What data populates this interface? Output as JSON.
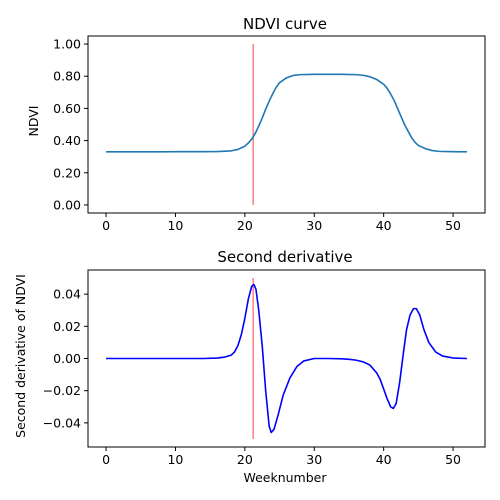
{
  "chart_data": [
    {
      "type": "line",
      "title": "NDVI curve",
      "xlabel": "",
      "ylabel": "NDVI",
      "xlim": [
        -2.6,
        54.6
      ],
      "ylim": [
        -0.05,
        1.05
      ],
      "xticks": [
        0,
        10,
        20,
        30,
        40,
        50
      ],
      "xtick_labels": [
        "0",
        "10",
        "20",
        "30",
        "40",
        "50"
      ],
      "yticks": [
        0.0,
        0.2,
        0.4,
        0.6,
        0.8,
        1.0
      ],
      "ytick_labels": [
        "0.00",
        "0.20",
        "0.40",
        "0.60",
        "0.80",
        "1.00"
      ],
      "grid": false,
      "series": [
        {
          "color": "#1f77b4",
          "x": [
            0,
            2,
            4,
            6,
            8,
            10,
            12,
            14,
            16,
            18,
            19,
            20,
            20.5,
            21,
            21.5,
            22,
            22.5,
            23,
            23.5,
            24,
            24.5,
            25,
            26,
            27,
            28,
            30,
            32,
            34,
            36,
            37,
            38,
            39,
            40,
            40.5,
            41,
            41.5,
            42,
            42.5,
            43,
            43.5,
            44,
            44.5,
            45,
            46,
            47,
            48,
            50,
            52
          ],
          "y": [
            0.33,
            0.33,
            0.33,
            0.33,
            0.33,
            0.331,
            0.331,
            0.331,
            0.332,
            0.336,
            0.345,
            0.365,
            0.385,
            0.41,
            0.445,
            0.49,
            0.54,
            0.595,
            0.645,
            0.69,
            0.73,
            0.76,
            0.79,
            0.805,
            0.81,
            0.812,
            0.812,
            0.812,
            0.81,
            0.806,
            0.797,
            0.78,
            0.75,
            0.725,
            0.69,
            0.65,
            0.6,
            0.55,
            0.5,
            0.46,
            0.42,
            0.39,
            0.37,
            0.35,
            0.338,
            0.333,
            0.331,
            0.33
          ]
        }
      ],
      "vline": {
        "x": 21.2,
        "ymin": 0.0,
        "ymax": 1.0,
        "color": "#ff7f7f"
      }
    },
    {
      "type": "line",
      "title": "Second derivative",
      "xlabel": "Weeknumber",
      "ylabel": "Second derivative of NDVI",
      "xlim": [
        -2.6,
        54.6
      ],
      "ylim": [
        -0.055,
        0.055
      ],
      "xticks": [
        0,
        10,
        20,
        30,
        40,
        50
      ],
      "xtick_labels": [
        "0",
        "10",
        "20",
        "30",
        "40",
        "50"
      ],
      "yticks": [
        -0.04,
        -0.02,
        0.0,
        0.02,
        0.04
      ],
      "ytick_labels": [
        "−0.04",
        "−0.02",
        "0.00",
        "0.02",
        "0.04"
      ],
      "grid": false,
      "series": [
        {
          "color": "#0000ff",
          "x": [
            0,
            5,
            10,
            14,
            16,
            17,
            18,
            18.5,
            19,
            19.5,
            20,
            20.5,
            21,
            21.3,
            21.6,
            22,
            22.5,
            23,
            23.5,
            23.8,
            24.2,
            24.8,
            25.5,
            26.5,
            27.5,
            28.5,
            30,
            32,
            34,
            35,
            36,
            37,
            38,
            39,
            39.5,
            40,
            40.5,
            41,
            41.4,
            41.8,
            42.3,
            42.8,
            43.3,
            43.8,
            44.3,
            44.7,
            45.2,
            45.8,
            46.5,
            47.5,
            48.5,
            50,
            52
          ],
          "y": [
            0,
            0,
            0,
            0,
            0.0003,
            0.0008,
            0.002,
            0.004,
            0.008,
            0.015,
            0.025,
            0.037,
            0.045,
            0.046,
            0.043,
            0.03,
            0.008,
            -0.02,
            -0.042,
            -0.046,
            -0.044,
            -0.035,
            -0.023,
            -0.012,
            -0.005,
            -0.0015,
            0,
            0,
            -0.0002,
            -0.0005,
            -0.001,
            -0.002,
            -0.004,
            -0.009,
            -0.013,
            -0.019,
            -0.025,
            -0.03,
            -0.031,
            -0.028,
            -0.015,
            0.002,
            0.018,
            0.027,
            0.031,
            0.031,
            0.027,
            0.018,
            0.01,
            0.004,
            0.0015,
            0.0003,
            0
          ]
        }
      ],
      "vline": {
        "x": 21.2,
        "ymin": -0.05,
        "ymax": 0.05,
        "color": "#ff7f7f"
      }
    }
  ]
}
